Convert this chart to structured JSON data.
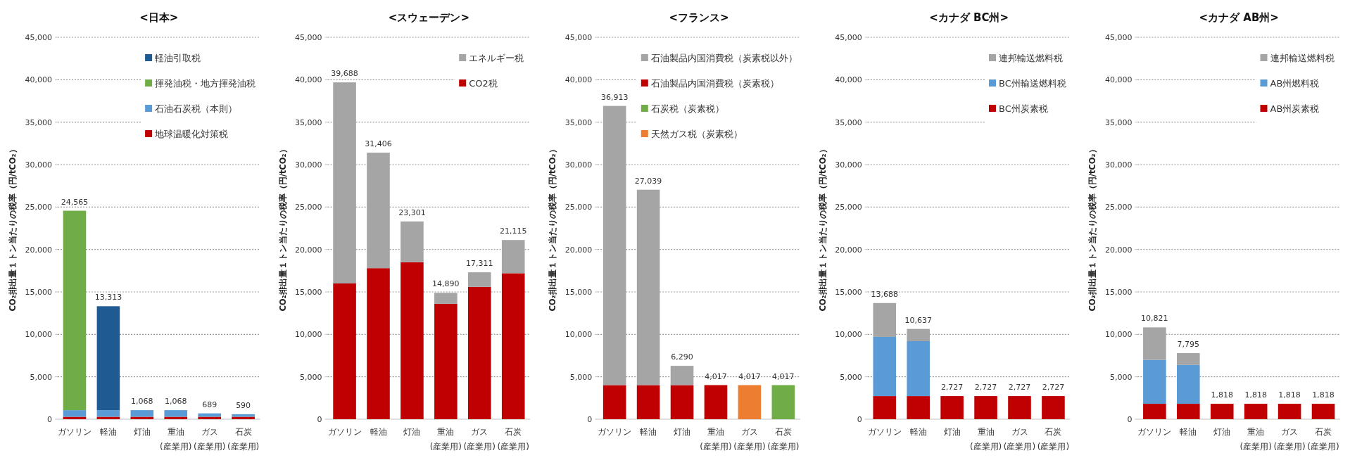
{
  "chart_data": [
    {
      "type": "bar",
      "title": "<日本>",
      "ylabel": "CO₂排出量１トン当たりの税率（円/tCO₂）",
      "stacked": true,
      "grid": "y",
      "legend": "top right",
      "categories": [
        "ガソリン",
        "軽油",
        "灯油",
        "重油\n(産業用)",
        "ガス\n(産業用)",
        "石炭\n(産業用)"
      ],
      "ylim": [
        0,
        45000
      ],
      "yticks": [
        {
          "value": 0,
          "label": "0"
        },
        {
          "value": 5000,
          "label": "5,000"
        },
        {
          "value": 10000,
          "label": "10,000"
        },
        {
          "value": 15000,
          "label": "15,000"
        },
        {
          "value": 20000,
          "label": "20,000"
        },
        {
          "value": 25000,
          "label": "25,000"
        },
        {
          "value": 30000,
          "label": "30,000"
        },
        {
          "value": 35000,
          "label": "35,000"
        },
        {
          "value": 40000,
          "label": "40,000"
        },
        {
          "value": 45000,
          "label": "45,000"
        }
      ],
      "series": [
        {
          "name": "地球温暖化対策税",
          "color": "#c00000",
          "values": [
            289,
            289,
            289,
            289,
            289,
            289
          ]
        },
        {
          "name": "石油石炭税（本則）",
          "color": "#5b9bd5",
          "values": [
            779,
            779,
            779,
            779,
            400,
            301
          ]
        },
        {
          "name": "揮発油税・地方揮発油税",
          "color": "#70ad47",
          "values": [
            23497,
            null,
            null,
            null,
            null,
            null
          ]
        },
        {
          "name": "軽油引取税",
          "color": "#1f5b92",
          "values": [
            null,
            12245,
            null,
            null,
            null,
            null
          ]
        }
      ],
      "totals": [
        "24,565",
        "13,313",
        "1,068",
        "1,068",
        "689",
        "590"
      ]
    },
    {
      "type": "bar",
      "title": "<スウェーデン>",
      "ylabel": "CO₂排出量１トン当たりの税率（円/tCO₂）",
      "stacked": true,
      "grid": "y",
      "legend": "top right",
      "categories": [
        "ガソリン",
        "軽油",
        "灯油",
        "重油\n(産業用)",
        "ガス\n(産業用)",
        "石炭\n(産業用)"
      ],
      "ylim": [
        0,
        45000
      ],
      "yticks": [
        {
          "value": 0,
          "label": "0"
        },
        {
          "value": 5000,
          "label": "5,000"
        },
        {
          "value": 10000,
          "label": "10,000"
        },
        {
          "value": 15000,
          "label": "15,000"
        },
        {
          "value": 20000,
          "label": "20,000"
        },
        {
          "value": 25000,
          "label": "25,000"
        },
        {
          "value": 30000,
          "label": "30,000"
        },
        {
          "value": 35000,
          "label": "35,000"
        },
        {
          "value": 40000,
          "label": "40,000"
        },
        {
          "value": 45000,
          "label": "45,000"
        }
      ],
      "series": [
        {
          "name": "CO2税",
          "color": "#c00000",
          "values": [
            16000,
            17800,
            18500,
            13600,
            15600,
            17200
          ]
        },
        {
          "name": "エネルギー税",
          "color": "#a5a5a5",
          "values": [
            23688,
            13606,
            4801,
            1290,
            1711,
            3915
          ]
        }
      ],
      "totals": [
        "39,688",
        "31,406",
        "23,301",
        "14,890",
        "17,311",
        "21,115"
      ]
    },
    {
      "type": "bar",
      "title": "<フランス>",
      "ylabel": "CO₂排出量１トン当たりの税率（円/tCO₂）",
      "stacked": true,
      "grid": "y",
      "legend": "top right",
      "categories": [
        "ガソリン",
        "軽油",
        "灯油",
        "重油\n(産業用)",
        "ガス\n(産業用)",
        "石炭\n(産業用)"
      ],
      "ylim": [
        0,
        45000
      ],
      "yticks": [
        {
          "value": 0,
          "label": "0"
        },
        {
          "value": 5000,
          "label": "5,000"
        },
        {
          "value": 10000,
          "label": "10,000"
        },
        {
          "value": 15000,
          "label": "15,000"
        },
        {
          "value": 20000,
          "label": "20,000"
        },
        {
          "value": 25000,
          "label": "25,000"
        },
        {
          "value": 30000,
          "label": "30,000"
        },
        {
          "value": 35000,
          "label": "35,000"
        },
        {
          "value": 40000,
          "label": "40,000"
        },
        {
          "value": 45000,
          "label": "45,000"
        }
      ],
      "series": [
        {
          "name": "天然ガス税（炭素税）",
          "color": "#ed7d31",
          "values": [
            null,
            null,
            null,
            null,
            4017,
            null
          ]
        },
        {
          "name": "石炭税（炭素税）",
          "color": "#70ad47",
          "values": [
            null,
            null,
            null,
            null,
            null,
            4017
          ]
        },
        {
          "name": "石油製品内国消費税（炭素税）",
          "color": "#c00000",
          "values": [
            4017,
            4017,
            4017,
            4017,
            null,
            null
          ]
        },
        {
          "name": "石油製品内国消費税（炭素税以外）",
          "color": "#a5a5a5",
          "values": [
            32896,
            23022,
            2273,
            null,
            null,
            null
          ]
        }
      ],
      "totals": [
        "36,913",
        "27,039",
        "6,290",
        "4,017",
        "4,017",
        "4,017"
      ]
    },
    {
      "type": "bar",
      "title": "<カナダ BC州>",
      "ylabel": "CO₂排出量１トン当たりの税率（円/tCO₂）",
      "stacked": true,
      "grid": "y",
      "legend": "top right",
      "categories": [
        "ガソリン",
        "軽油",
        "灯油",
        "重油\n(産業用)",
        "ガス\n(産業用)",
        "石炭\n(産業用)"
      ],
      "ylim": [
        0,
        45000
      ],
      "yticks": [
        {
          "value": 0,
          "label": "0"
        },
        {
          "value": 5000,
          "label": "5,000"
        },
        {
          "value": 10000,
          "label": "10,000"
        },
        {
          "value": 15000,
          "label": "15,000"
        },
        {
          "value": 20000,
          "label": "20,000"
        },
        {
          "value": 25000,
          "label": "25,000"
        },
        {
          "value": 30000,
          "label": "30,000"
        },
        {
          "value": 35000,
          "label": "35,000"
        },
        {
          "value": 40000,
          "label": "40,000"
        },
        {
          "value": 45000,
          "label": "45,000"
        }
      ],
      "series": [
        {
          "name": "BC州炭素税",
          "color": "#c00000",
          "values": [
            2727,
            2727,
            2727,
            2727,
            2727,
            2727
          ]
        },
        {
          "name": "BC州輸送燃料税",
          "color": "#5b9bd5",
          "values": [
            6973,
            6473,
            null,
            null,
            null,
            null
          ]
        },
        {
          "name": "連邦輸送燃料税",
          "color": "#a5a5a5",
          "values": [
            3988,
            1437,
            null,
            null,
            null,
            null
          ]
        }
      ],
      "totals": [
        "13,688",
        "10,637",
        "2,727",
        "2,727",
        "2,727",
        "2,727"
      ]
    },
    {
      "type": "bar",
      "title": "<カナダ AB州>",
      "ylabel": "CO₂排出量１トン当たりの税率（円/tCO₂）",
      "stacked": true,
      "grid": "y",
      "legend": "top right",
      "categories": [
        "ガソリン",
        "軽油",
        "灯油",
        "重油\n(産業用)",
        "ガス\n(産業用)",
        "石炭\n(産業用)"
      ],
      "ylim": [
        0,
        45000
      ],
      "yticks": [
        {
          "value": 0,
          "label": "0"
        },
        {
          "value": 5000,
          "label": "5,000"
        },
        {
          "value": 10000,
          "label": "10,000"
        },
        {
          "value": 15000,
          "label": "15,000"
        },
        {
          "value": 20000,
          "label": "20,000"
        },
        {
          "value": 25000,
          "label": "25,000"
        },
        {
          "value": 30000,
          "label": "30,000"
        },
        {
          "value": 35000,
          "label": "35,000"
        },
        {
          "value": 40000,
          "label": "40,000"
        },
        {
          "value": 45000,
          "label": "45,000"
        }
      ],
      "series": [
        {
          "name": "AB州炭素税",
          "color": "#c00000",
          "values": [
            1818,
            1818,
            1818,
            1818,
            1818,
            1818
          ]
        },
        {
          "name": "AB州燃料税",
          "color": "#5b9bd5",
          "values": [
            5182,
            4582,
            null,
            null,
            null,
            null
          ]
        },
        {
          "name": "連邦輸送燃料税",
          "color": "#a5a5a5",
          "values": [
            3821,
            1395,
            null,
            null,
            null,
            null
          ]
        }
      ],
      "totals": [
        "10,821",
        "7,795",
        "1,818",
        "1,818",
        "1,818",
        "1,818"
      ]
    }
  ]
}
